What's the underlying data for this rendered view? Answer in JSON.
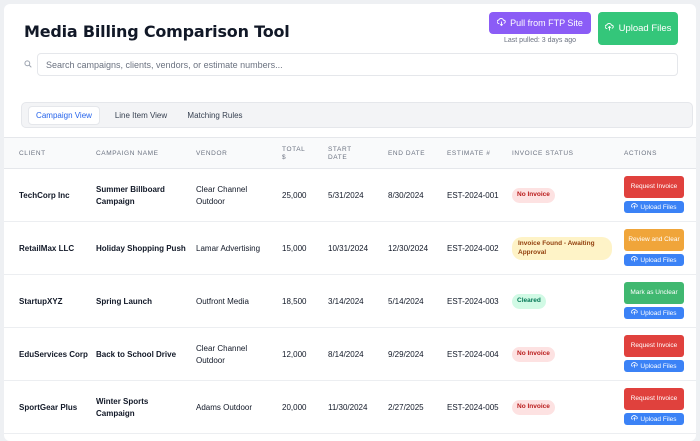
{
  "header": {
    "title": "Media Billing Comparison Tool",
    "pull_button": "Pull from FTP Site",
    "last_pulled": "Last pulled: 3 days ago",
    "upload_button": "Upload Files"
  },
  "search": {
    "placeholder": "Search campaigns, clients, vendors, or estimate numbers..."
  },
  "tabs": [
    {
      "label": "Campaign View",
      "active": true
    },
    {
      "label": "Line Item View",
      "active": false
    },
    {
      "label": "Matching Rules",
      "active": false
    }
  ],
  "table": {
    "headers": [
      "CLIENT",
      "CAMPAIGN NAME",
      "VENDOR",
      "TOTAL $",
      "START DATE",
      "END DATE",
      "ESTIMATE #",
      "INVOICE STATUS",
      "ACTIONS"
    ],
    "upload_label": "Upload Files",
    "rows": [
      {
        "client": "TechCorp Inc",
        "campaign": "Summer Billboard Campaign",
        "vendor": "Clear Channel Outdoor",
        "total": "25,000",
        "start": "5/31/2024",
        "end": "8/30/2024",
        "estimate": "EST-2024-001",
        "status": "No Invoice",
        "action": "Request Invoice"
      },
      {
        "client": "RetailMax LLC",
        "campaign": "Holiday Shopping Push",
        "vendor": "Lamar Advertising",
        "total": "15,000",
        "start": "10/31/2024",
        "end": "12/30/2024",
        "estimate": "EST-2024-002",
        "status": "Invoice Found - Awaiting Approval",
        "action": "Review and Clear"
      },
      {
        "client": "StartupXYZ",
        "campaign": "Spring Launch",
        "vendor": "Outfront Media",
        "total": "18,500",
        "start": "3/14/2024",
        "end": "5/14/2024",
        "estimate": "EST-2024-003",
        "status": "Cleared",
        "action": "Mark as Unclear"
      },
      {
        "client": "EduServices Corp",
        "campaign": "Back to School Drive",
        "vendor": "Clear Channel Outdoor",
        "total": "12,000",
        "start": "8/14/2024",
        "end": "9/29/2024",
        "estimate": "EST-2024-004",
        "status": "No Invoice",
        "action": "Request Invoice"
      },
      {
        "client": "SportGear Plus",
        "campaign": "Winter Sports Campaign",
        "vendor": "Adams Outdoor",
        "total": "20,000",
        "start": "11/30/2024",
        "end": "2/27/2025",
        "estimate": "EST-2024-005",
        "status": "No Invoice",
        "action": "Request Invoice"
      }
    ]
  },
  "colors": {
    "ftp_button": "#8b5cf6",
    "upload_button": "#34c67a",
    "request_invoice": "#e0413d",
    "review_clear": "#f0a53a",
    "mark_unclear": "#40b870",
    "upload_small": "#3b82f6",
    "active_tab": "#2563eb"
  },
  "icons": {
    "pull": "cloud-download-icon",
    "upload": "cloud-upload-icon",
    "search": "search-icon"
  }
}
